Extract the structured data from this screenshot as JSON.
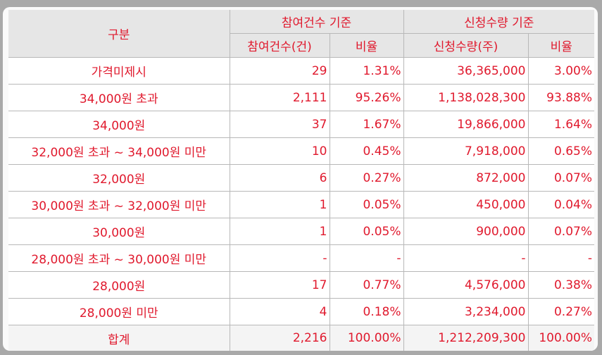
{
  "table": {
    "header": {
      "category": "구분",
      "group_participation": "참여건수 기준",
      "group_application": "신청수량 기준",
      "sub_count": "참여건수(건)",
      "sub_count_ratio": "비율",
      "sub_quantity": "신청수량(주)",
      "sub_quantity_ratio": "비율"
    },
    "rows": [
      {
        "label": "가격미제시",
        "count": "29",
        "count_ratio": "1.31%",
        "quantity": "36,365,000",
        "quantity_ratio": "3.00%"
      },
      {
        "label": "34,000원 초과",
        "count": "2,111",
        "count_ratio": "95.26%",
        "quantity": "1,138,028,300",
        "quantity_ratio": "93.88%"
      },
      {
        "label": "34,000원",
        "count": "37",
        "count_ratio": "1.67%",
        "quantity": "19,866,000",
        "quantity_ratio": "1.64%"
      },
      {
        "label": "32,000원 초과 ~ 34,000원 미만",
        "count": "10",
        "count_ratio": "0.45%",
        "quantity": "7,918,000",
        "quantity_ratio": "0.65%"
      },
      {
        "label": "32,000원",
        "count": "6",
        "count_ratio": "0.27%",
        "quantity": "872,000",
        "quantity_ratio": "0.07%"
      },
      {
        "label": "30,000원 초과 ~ 32,000원 미만",
        "count": "1",
        "count_ratio": "0.05%",
        "quantity": "450,000",
        "quantity_ratio": "0.04%"
      },
      {
        "label": "30,000원",
        "count": "1",
        "count_ratio": "0.05%",
        "quantity": "900,000",
        "quantity_ratio": "0.07%"
      },
      {
        "label": "28,000원 초과 ~ 30,000원 미만",
        "count": "-",
        "count_ratio": "-",
        "quantity": "-",
        "quantity_ratio": "-"
      },
      {
        "label": "28,000원",
        "count": "17",
        "count_ratio": "0.77%",
        "quantity": "4,576,000",
        "quantity_ratio": "0.38%"
      },
      {
        "label": "28,000원 미만",
        "count": "4",
        "count_ratio": "0.18%",
        "quantity": "3,234,000",
        "quantity_ratio": "0.27%"
      }
    ],
    "total": {
      "label": "합계",
      "count": "2,216",
      "count_ratio": "100.00%",
      "quantity": "1,212,209,300",
      "quantity_ratio": "100.00%"
    }
  }
}
